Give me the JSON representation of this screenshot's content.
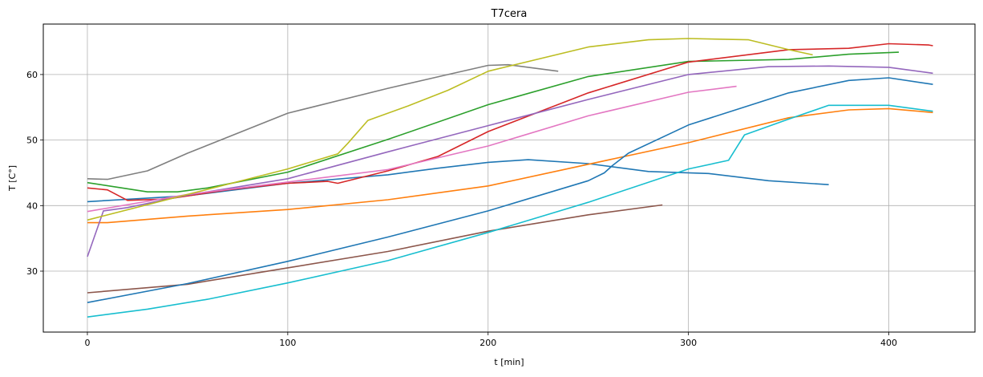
{
  "chart_data": {
    "type": "line",
    "title": "T7cera",
    "xlabel": "t [min]",
    "ylabel": "T [C°]",
    "xlim": [
      -22,
      443
    ],
    "ylim": [
      20.7,
      67.7
    ],
    "xticks": [
      0,
      100,
      200,
      300,
      400
    ],
    "yticks": [
      30,
      40,
      50,
      60
    ],
    "grid": true,
    "legend": "none",
    "series": [
      {
        "color": "#1f77b4",
        "x": [
          0,
          50,
          100,
          150,
          175,
          200,
          220,
          250,
          280,
          310,
          340,
          370
        ],
        "y": [
          40.6,
          41.5,
          43.4,
          44.7,
          45.7,
          46.6,
          47.0,
          46.4,
          45.2,
          44.9,
          43.8,
          43.2
        ]
      },
      {
        "color": "#ff7f0e",
        "x": [
          0,
          10,
          50,
          100,
          150,
          200,
          250,
          300,
          350,
          380,
          400,
          422
        ],
        "y": [
          37.4,
          37.4,
          38.4,
          39.4,
          40.9,
          43.0,
          46.3,
          49.6,
          53.4,
          54.6,
          54.8,
          54.2
        ]
      },
      {
        "color": "#2ca02c",
        "x": [
          0,
          15,
          30,
          45,
          60,
          100,
          150,
          200,
          250,
          300,
          350,
          380,
          405
        ],
        "y": [
          43.5,
          42.8,
          42.1,
          42.1,
          42.7,
          45.1,
          50.1,
          55.4,
          59.7,
          62.0,
          62.3,
          63.1,
          63.4
        ]
      },
      {
        "color": "#d62728",
        "x": [
          0,
          10,
          20,
          40,
          70,
          100,
          120,
          125,
          150,
          175,
          200,
          250,
          300,
          350,
          380,
          400,
          420,
          422
        ],
        "y": [
          42.7,
          42.4,
          40.8,
          41.0,
          42.4,
          43.4,
          43.7,
          43.4,
          45.3,
          47.5,
          51.3,
          57.2,
          61.9,
          63.8,
          64.0,
          64.7,
          64.5,
          64.4
        ]
      },
      {
        "color": "#9467bd",
        "x": [
          0,
          8,
          20,
          50,
          100,
          150,
          200,
          250,
          300,
          340,
          370,
          400,
          422
        ],
        "y": [
          32.2,
          39.2,
          39.7,
          41.6,
          44.1,
          48.2,
          52.2,
          56.2,
          60.0,
          61.2,
          61.3,
          61.1,
          60.2
        ]
      },
      {
        "color": "#8c564b",
        "x": [
          0,
          50,
          100,
          150,
          200,
          250,
          287
        ],
        "y": [
          26.7,
          28.0,
          30.5,
          33.0,
          36.1,
          38.6,
          40.1
        ]
      },
      {
        "color": "#e377c2",
        "x": [
          0,
          50,
          100,
          150,
          200,
          250,
          300,
          324
        ],
        "y": [
          39.1,
          41.7,
          43.6,
          45.5,
          49.1,
          53.7,
          57.3,
          58.2
        ]
      },
      {
        "color": "#7f7f7f",
        "x": [
          0,
          10,
          30,
          50,
          100,
          150,
          180,
          200,
          210,
          235
        ],
        "y": [
          44.1,
          44.0,
          45.3,
          48.0,
          54.1,
          57.9,
          60.0,
          61.4,
          61.5,
          60.5
        ]
      },
      {
        "color": "#bcbd22",
        "x": [
          0,
          50,
          100,
          125,
          130,
          140,
          160,
          180,
          200,
          250,
          280,
          300,
          330,
          350,
          362
        ],
        "y": [
          37.8,
          41.7,
          45.6,
          47.9,
          49.5,
          53.0,
          55.2,
          57.6,
          60.5,
          64.2,
          65.3,
          65.5,
          65.3,
          63.8,
          63.0
        ]
      },
      {
        "color": "#17becf",
        "x": [
          0,
          30,
          60,
          100,
          150,
          200,
          250,
          300,
          320,
          328,
          350,
          370,
          400,
          422
        ],
        "y": [
          23.0,
          24.2,
          25.7,
          28.2,
          31.6,
          35.9,
          40.5,
          45.6,
          46.9,
          50.8,
          53.2,
          55.3,
          55.3,
          54.4
        ]
      },
      {
        "color": "#1f77b4",
        "x": [
          0,
          50,
          100,
          150,
          200,
          250,
          258,
          262,
          270,
          300,
          350,
          380,
          400,
          422
        ],
        "y": [
          25.2,
          28.1,
          31.5,
          35.2,
          39.2,
          43.8,
          45.0,
          46.1,
          48.0,
          52.3,
          57.2,
          59.1,
          59.5,
          58.5
        ]
      }
    ]
  }
}
